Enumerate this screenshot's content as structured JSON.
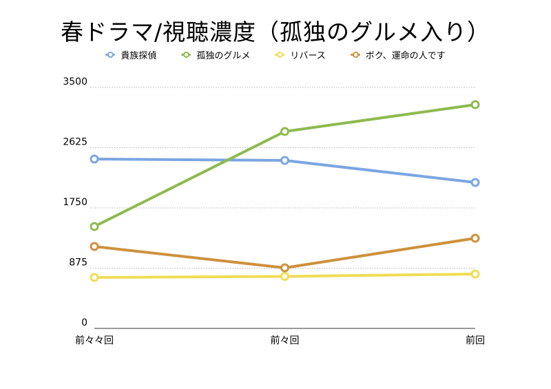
{
  "chart_data": {
    "type": "line",
    "title": "春ドラマ/視聴濃度（孤独のグルメ入り）",
    "categories": [
      "前々々回",
      "前々回",
      "前回"
    ],
    "ylim": [
      0,
      3500
    ],
    "yticks": [
      "0",
      "875",
      "1750",
      "2625",
      "3500"
    ],
    "ytick_values": [
      0,
      875,
      1750,
      2625,
      3500
    ],
    "grid": true,
    "legend_position": "top",
    "series": [
      {
        "name": "貴族探偵",
        "color": "#7aa6e0",
        "values": [
          2460,
          2440,
          2120
        ]
      },
      {
        "name": "孤独のグルメ",
        "color": "#8dba4f",
        "values": [
          1480,
          2860,
          3250
        ]
      },
      {
        "name": "リバース",
        "color": "#f0dd55",
        "values": [
          740,
          755,
          790
        ]
      },
      {
        "name": "ボク、運命の人です",
        "color": "#cd913c",
        "values": [
          1190,
          880,
          1310
        ]
      }
    ]
  }
}
